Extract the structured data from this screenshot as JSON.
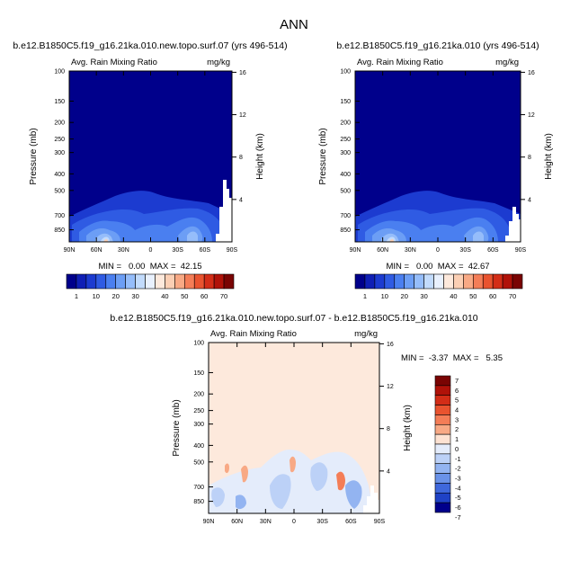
{
  "page_title": "ANN",
  "colors": {
    "frame": "#000000",
    "background": "#ffffff",
    "scale_abs": [
      "#00008b",
      "#0f1fb5",
      "#1c3bd0",
      "#2f5be3",
      "#4a7ff0",
      "#6c9ef5",
      "#95bdfa",
      "#c2dbfc",
      "#e9f1fe",
      "#fde9dc",
      "#fbcfb4",
      "#f8a985",
      "#f47d57",
      "#e9532f",
      "#d32d17",
      "#b01209",
      "#7a0403"
    ],
    "scale_diff": [
      "#7a0403",
      "#b01209",
      "#d32d17",
      "#e9532f",
      "#f47d57",
      "#f8a985",
      "#fde2d2",
      "#e4ecfb",
      "#bcd1f7",
      "#93b4f1",
      "#6a92e8",
      "#3f68dc",
      "#1f42c6",
      "#00008b"
    ]
  },
  "chart_data": [
    {
      "type": "heatmap",
      "title": "b.e12.B1850C5.f19_g16.21ka.010.new.topo.surf.07 (yrs 496-514)",
      "subtitle_left": "Avg. Rain Mixing Ratio",
      "subtitle_right": "mg/kg",
      "ylabel": "Pressure (mb)",
      "ylabel_right": "Height (km)",
      "x_ticks": [
        "90N",
        "60N",
        "30N",
        "0",
        "30S",
        "60S",
        "90S"
      ],
      "y_ticks": [
        "100",
        "150",
        "200",
        "250",
        "300",
        "400",
        "500",
        "700",
        "850"
      ],
      "y_ticks_right": [
        "16",
        "12",
        "8",
        "4"
      ],
      "ylim": [
        1000,
        100
      ],
      "stats": "MIN =   0.00  MAX =  42.15",
      "colorbar_labels": [
        "1",
        "10",
        "20",
        "30",
        "40",
        "50",
        "60",
        "70"
      ]
    },
    {
      "type": "heatmap",
      "title": "b.e12.B1850C5.f19_g16.21ka.010 (yrs 496-514)",
      "subtitle_left": "Avg. Rain Mixing Ratio",
      "subtitle_right": "mg/kg",
      "ylabel": "Pressure (mb)",
      "ylabel_right": "Height (km)",
      "x_ticks": [
        "90N",
        "60N",
        "30N",
        "0",
        "30S",
        "60S",
        "90S"
      ],
      "y_ticks": [
        "100",
        "150",
        "200",
        "250",
        "300",
        "400",
        "500",
        "700",
        "850"
      ],
      "y_ticks_right": [
        "16",
        "12",
        "8",
        "4"
      ],
      "ylim": [
        1000,
        100
      ],
      "stats": "MIN =   0.00  MAX =  42.67",
      "colorbar_labels": [
        "1",
        "10",
        "20",
        "30",
        "40",
        "50",
        "60",
        "70"
      ]
    },
    {
      "type": "heatmap",
      "title": "b.e12.B1850C5.f19_g16.21ka.010.new.topo.surf.07 - b.e12.B1850C5.f19_g16.21ka.010",
      "subtitle_left": "Avg. Rain Mixing Ratio",
      "subtitle_right": "mg/kg",
      "ylabel": "Pressure (mb)",
      "ylabel_right": "Height (km)",
      "x_ticks": [
        "90N",
        "60N",
        "30N",
        "0",
        "30S",
        "60S",
        "90S"
      ],
      "y_ticks": [
        "100",
        "150",
        "200",
        "250",
        "300",
        "400",
        "500",
        "700",
        "850"
      ],
      "y_ticks_right": [
        "16",
        "12",
        "8",
        "4"
      ],
      "ylim": [
        1000,
        100
      ],
      "stats": "MIN =  -3.37  MAX =   5.35",
      "colorbar_labels": [
        "7",
        "6",
        "5",
        "4",
        "3",
        "2",
        "1",
        "0",
        "-1",
        "-2",
        "-3",
        "-4",
        "-5",
        "-6",
        "-7"
      ]
    }
  ]
}
